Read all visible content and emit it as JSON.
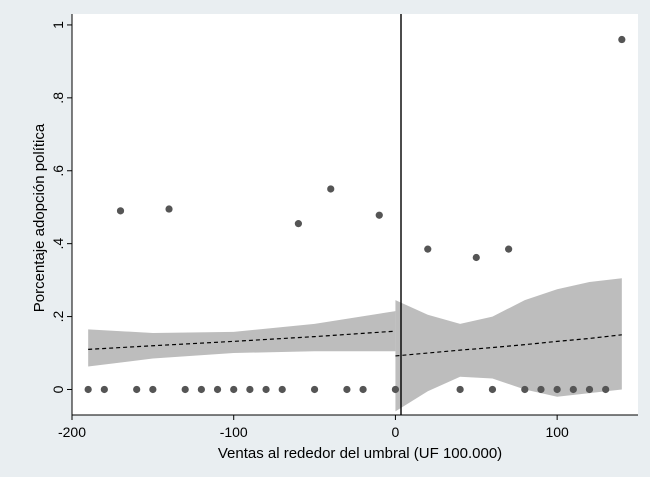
{
  "chart_data": {
    "type": "scatter",
    "title": "",
    "xlabel": "Ventas al rededor del umbral (UF 100.000)",
    "ylabel": "Porcentaje adopción política",
    "xlim": [
      -200,
      150
    ],
    "ylim": [
      -0.07,
      1.03
    ],
    "xticks": [
      -200,
      -100,
      0,
      100
    ],
    "xtick_labels": [
      "-200",
      "-100",
      "0",
      "100"
    ],
    "yticks": [
      0,
      0.2,
      0.4,
      0.6,
      0.8,
      1
    ],
    "ytick_labels": [
      "0",
      ".2",
      ".4",
      ".6",
      ".8",
      "1"
    ],
    "threshold_x": 0,
    "grid": false,
    "colors": {
      "points": "#555555",
      "ci_band": "#bdbdbd",
      "fit": "#000000",
      "plot_bg": "#ffffff",
      "outer_bg": "#e9eef1"
    },
    "points": [
      {
        "x": -190,
        "y": 0
      },
      {
        "x": -180,
        "y": 0
      },
      {
        "x": -170,
        "y": 0.49
      },
      {
        "x": -160,
        "y": 0
      },
      {
        "x": -150,
        "y": 0
      },
      {
        "x": -140,
        "y": 0.495
      },
      {
        "x": -130,
        "y": 0
      },
      {
        "x": -120,
        "y": 0
      },
      {
        "x": -110,
        "y": 0
      },
      {
        "x": -100,
        "y": 0
      },
      {
        "x": -90,
        "y": 0
      },
      {
        "x": -80,
        "y": 0
      },
      {
        "x": -70,
        "y": 0
      },
      {
        "x": -60,
        "y": 0.455
      },
      {
        "x": -50,
        "y": 0
      },
      {
        "x": -40,
        "y": 0.55
      },
      {
        "x": -30,
        "y": 0
      },
      {
        "x": -20,
        "y": 0
      },
      {
        "x": -10,
        "y": 0.478
      },
      {
        "x": 0,
        "y": 0
      },
      {
        "x": 20,
        "y": 0.385
      },
      {
        "x": 40,
        "y": 0
      },
      {
        "x": 50,
        "y": 0.362
      },
      {
        "x": 60,
        "y": 0
      },
      {
        "x": 70,
        "y": 0.385
      },
      {
        "x": 80,
        "y": 0
      },
      {
        "x": 90,
        "y": 0
      },
      {
        "x": 100,
        "y": 0
      },
      {
        "x": 110,
        "y": 0
      },
      {
        "x": 120,
        "y": 0
      },
      {
        "x": 130,
        "y": 0
      },
      {
        "x": 140,
        "y": 0.96
      }
    ],
    "fits": [
      {
        "side": "left",
        "x": [
          -190,
          -150,
          -100,
          -50,
          0
        ],
        "fit": [
          0.11,
          0.12,
          0.132,
          0.145,
          0.16
        ],
        "lower": [
          0.063,
          0.085,
          0.1,
          0.105,
          0.105
        ],
        "upper": [
          0.165,
          0.155,
          0.158,
          0.18,
          0.215
        ]
      },
      {
        "side": "right",
        "x": [
          0,
          20,
          40,
          60,
          80,
          100,
          120,
          140
        ],
        "fit": [
          0.092,
          0.1,
          0.108,
          0.115,
          0.123,
          0.132,
          0.14,
          0.15
        ],
        "lower": [
          -0.06,
          -0.005,
          0.035,
          0.03,
          0.0,
          -0.02,
          -0.01,
          0.0
        ],
        "upper": [
          0.245,
          0.205,
          0.18,
          0.2,
          0.245,
          0.275,
          0.295,
          0.305
        ]
      }
    ]
  }
}
